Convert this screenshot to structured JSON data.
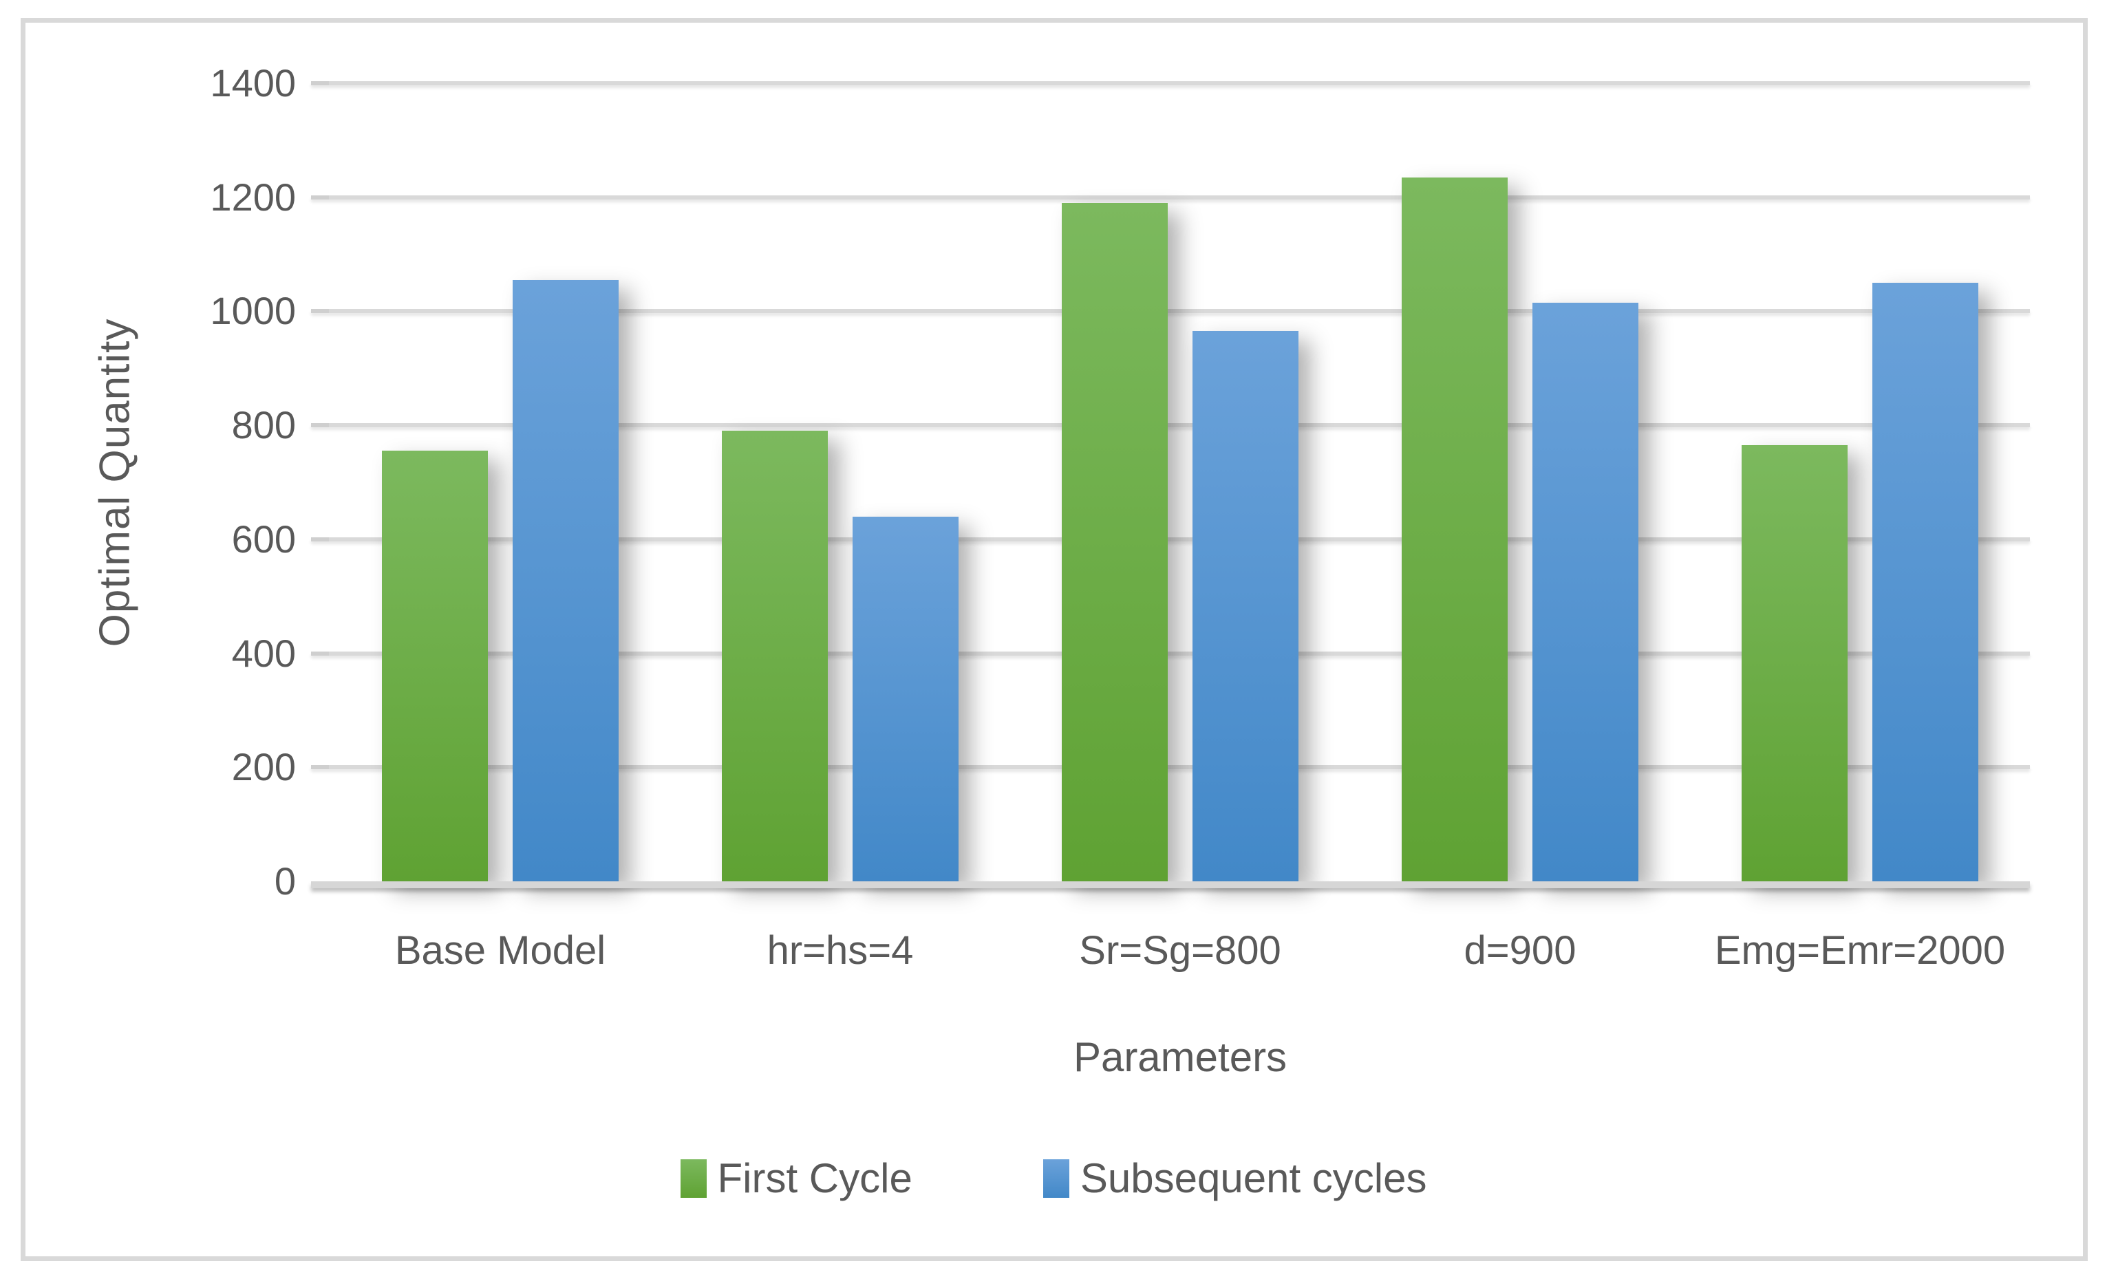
{
  "chart_data": {
    "type": "bar",
    "title": "",
    "xlabel": "Parameters",
    "ylabel": "Optimal Quantity",
    "ylim": [
      0,
      1400
    ],
    "ytick_step": 200,
    "grid": true,
    "legend_position": "bottom",
    "categories": [
      "Base Model",
      "hr=hs=4",
      "Sr=Sg=800",
      "d=900",
      "Emg=Emr=2000"
    ],
    "series": [
      {
        "name": "First Cycle",
        "values": [
          755,
          790,
          1190,
          1235,
          765
        ],
        "color_top": "#7CB95E",
        "color_bottom": "#5FA233"
      },
      {
        "name": "Subsequent cycles",
        "values": [
          1055,
          640,
          965,
          1015,
          1050
        ],
        "color_top": "#6BA2DA",
        "color_bottom": "#4288C8"
      }
    ]
  },
  "colors": {
    "text": "#595959",
    "gridline": "#D9D9D9",
    "axis_line": "#D6D6D6",
    "frame_border": "#D9D9D9",
    "background": "#FFFFFF"
  }
}
